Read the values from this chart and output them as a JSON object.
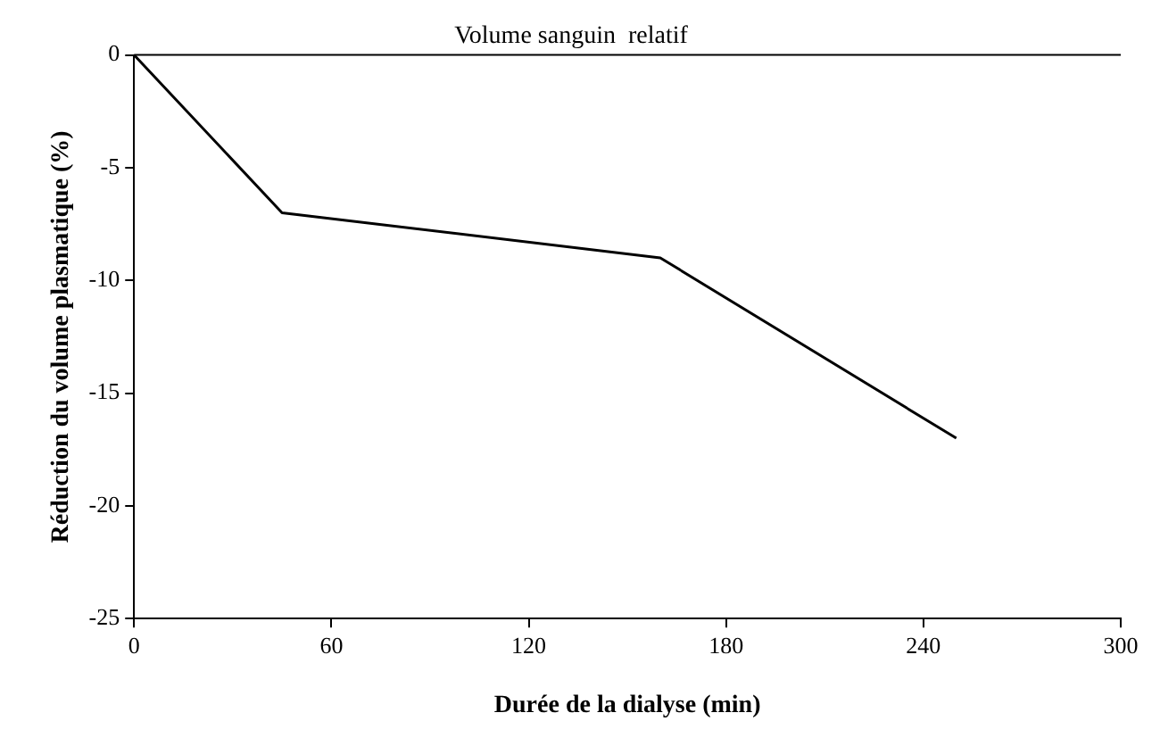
{
  "chart_data": {
    "type": "line",
    "title": "Volume sanguin  relatif",
    "xlabel": "Durée de la dialyse (min)",
    "ylabel": "Réduction du volume plasmatique (%)",
    "x": [
      0,
      45,
      160,
      250
    ],
    "series": [
      {
        "color": "#000000",
        "values": [
          0,
          -7,
          -9,
          -17
        ]
      }
    ],
    "xlim": [
      0,
      300
    ],
    "xticks": [
      0,
      60,
      120,
      180,
      240,
      300
    ],
    "ylim": [
      -25,
      0
    ],
    "yticks": [
      -25,
      -20,
      -15,
      -10,
      -5,
      0
    ],
    "ref_lines": [
      {
        "axis": "y",
        "value": 0,
        "color": "#000000"
      }
    ],
    "grid": false,
    "legend": false,
    "marker": "none",
    "line_style": "solid"
  }
}
